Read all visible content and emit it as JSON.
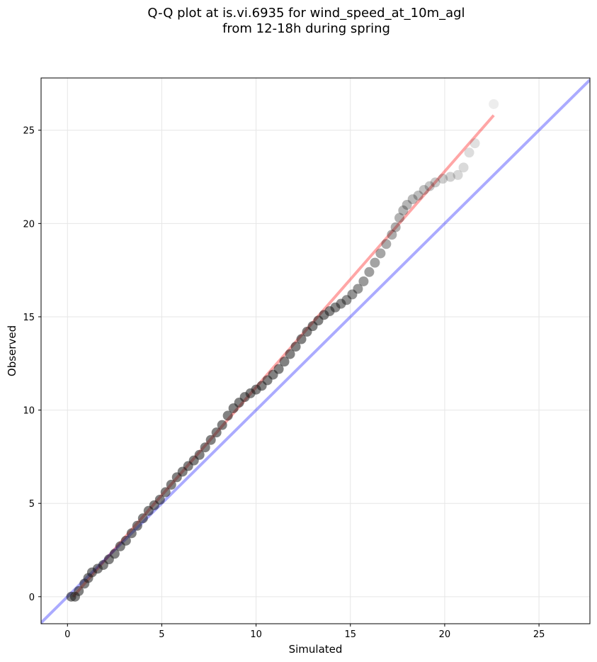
{
  "title_line1": "Q-Q plot at is.vi.6935 for wind_speed_at_10m_agl",
  "title_line2": "from 12-18h during spring",
  "chart_data": {
    "type": "scatter",
    "title": "Q-Q plot at is.vi.6935 for wind_speed_at_10m_agl\nfrom 12-18h during spring",
    "xlabel": "Simulated",
    "ylabel": "Observed",
    "xlim": [
      -1.4,
      27.7
    ],
    "ylim": [
      -1.45,
      27.8
    ],
    "xticks": [
      0,
      5,
      10,
      15,
      20,
      25
    ],
    "yticks": [
      0,
      5,
      10,
      15,
      20,
      25
    ],
    "grid": true,
    "series": [
      {
        "kind": "points",
        "color": "#000000",
        "points": [
          [
            0.2,
            0.0
          ],
          [
            0.4,
            0.0
          ],
          [
            0.6,
            0.3
          ],
          [
            0.9,
            0.7
          ],
          [
            1.1,
            1.0
          ],
          [
            1.3,
            1.3
          ],
          [
            1.6,
            1.5
          ],
          [
            1.9,
            1.7
          ],
          [
            2.2,
            2.0
          ],
          [
            2.5,
            2.3
          ],
          [
            2.8,
            2.7
          ],
          [
            3.1,
            3.0
          ],
          [
            3.4,
            3.4
          ],
          [
            3.7,
            3.8
          ],
          [
            4.0,
            4.2
          ],
          [
            4.3,
            4.6
          ],
          [
            4.6,
            4.9
          ],
          [
            4.9,
            5.2
          ],
          [
            5.2,
            5.6
          ],
          [
            5.5,
            6.0
          ],
          [
            5.8,
            6.4
          ],
          [
            6.1,
            6.7
          ],
          [
            6.4,
            7.0
          ],
          [
            6.7,
            7.3
          ],
          [
            7.0,
            7.6
          ],
          [
            7.3,
            8.0
          ],
          [
            7.6,
            8.4
          ],
          [
            7.9,
            8.8
          ],
          [
            8.2,
            9.2
          ],
          [
            8.5,
            9.7
          ],
          [
            8.8,
            10.1
          ],
          [
            9.1,
            10.4
          ],
          [
            9.4,
            10.7
          ],
          [
            9.7,
            10.9
          ],
          [
            10.0,
            11.1
          ],
          [
            10.3,
            11.3
          ],
          [
            10.6,
            11.6
          ],
          [
            10.9,
            11.9
          ],
          [
            11.2,
            12.2
          ],
          [
            11.5,
            12.6
          ],
          [
            11.8,
            13.0
          ],
          [
            12.1,
            13.4
          ],
          [
            12.4,
            13.8
          ],
          [
            12.7,
            14.2
          ],
          [
            13.0,
            14.5
          ],
          [
            13.3,
            14.8
          ],
          [
            13.6,
            15.1
          ],
          [
            13.9,
            15.3
          ],
          [
            14.2,
            15.5
          ],
          [
            14.5,
            15.7
          ],
          [
            14.8,
            15.9
          ],
          [
            15.1,
            16.2
          ],
          [
            15.4,
            16.5
          ],
          [
            15.7,
            16.9
          ],
          [
            16.0,
            17.4
          ],
          [
            16.3,
            17.9
          ],
          [
            16.6,
            18.4
          ],
          [
            16.9,
            18.9
          ],
          [
            17.2,
            19.4
          ],
          [
            17.4,
            19.8
          ],
          [
            17.6,
            20.3
          ],
          [
            17.8,
            20.7
          ],
          [
            18.0,
            21.0
          ],
          [
            18.3,
            21.3
          ],
          [
            18.6,
            21.5
          ],
          [
            18.9,
            21.8
          ],
          [
            19.2,
            22.0
          ],
          [
            19.5,
            22.2
          ],
          [
            19.9,
            22.4
          ],
          [
            20.3,
            22.5
          ],
          [
            20.7,
            22.6
          ],
          [
            21.0,
            23.0
          ],
          [
            21.3,
            23.8
          ],
          [
            21.6,
            24.3
          ],
          [
            22.6,
            26.4
          ]
        ]
      },
      {
        "kind": "line",
        "color": "#ff0000",
        "opacity": 0.35,
        "points": [
          [
            0.3,
            0.0
          ],
          [
            22.6,
            25.8
          ]
        ]
      },
      {
        "kind": "line",
        "color": "#0000ff",
        "opacity": 0.33,
        "points": [
          [
            -1.4,
            -1.4
          ],
          [
            27.7,
            27.7
          ]
        ]
      }
    ]
  }
}
